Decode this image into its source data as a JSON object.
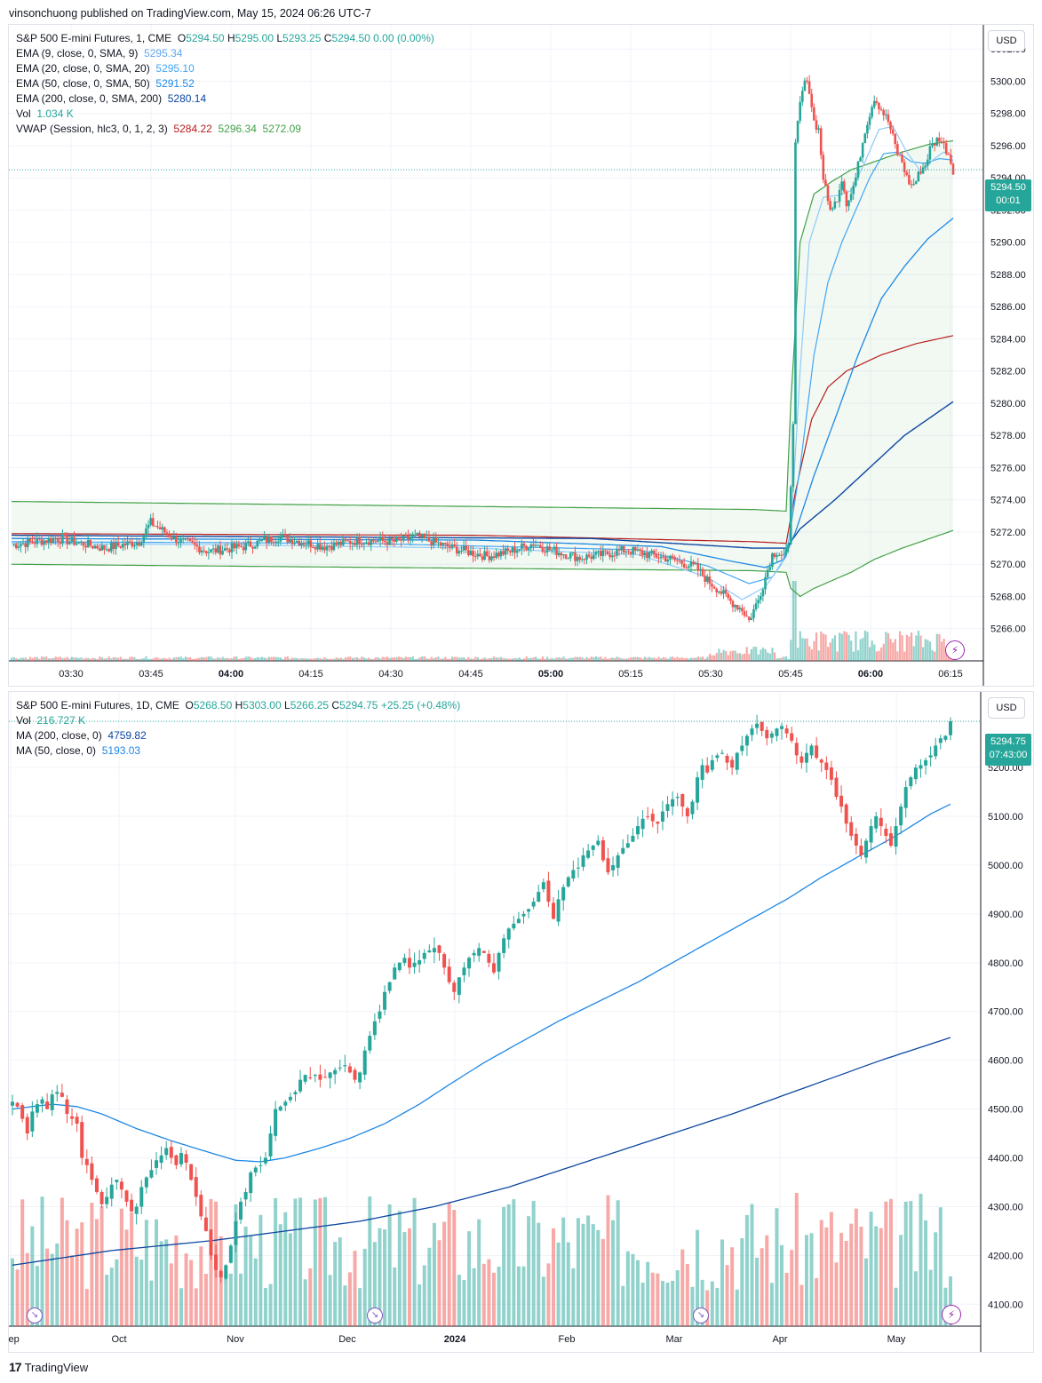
{
  "header": {
    "publisher": "vinsonchuong published on TradingView.com, May 15, 2024 06:26 UTC-7"
  },
  "top": {
    "title": "S&P 500 E-mini Futures, 1, CME",
    "ohlc": {
      "o_label": "O",
      "o": "5294.50",
      "h_label": "H",
      "h": "5295.00",
      "l_label": "L",
      "l": "5293.25",
      "c_label": "C",
      "c": "5294.50",
      "chg": "0.00 (0.00%)"
    },
    "indicators": [
      {
        "label": "EMA (9, close, 0, SMA, 9)",
        "value": "5295.34",
        "color": "#5fa8f0"
      },
      {
        "label": "EMA (20, close, 0, SMA, 20)",
        "value": "5295.10",
        "color": "#42a5f5"
      },
      {
        "label": "EMA (50, close, 0, SMA, 50)",
        "value": "5291.52",
        "color": "#1e88e5"
      },
      {
        "label": "EMA (200, close, 0, SMA, 200)",
        "value": "5280.14",
        "color": "#0d47a1"
      },
      {
        "label": "Vol",
        "value": "1.034 K",
        "color": "#26a69a"
      }
    ],
    "vwap": {
      "label": "VWAP (Session, hlc3, 0, 1, 2, 3)",
      "v1": "5284.22",
      "v2": "5296.34",
      "v3": "5272.09",
      "c1": "#b71c1c",
      "c2": "#43a047",
      "c3": "#43a047"
    },
    "currency": "USD",
    "last_price": "5294.50",
    "countdown": "00:01"
  },
  "bottom": {
    "title": "S&P 500 E-mini Futures, 1D, CME",
    "ohlc": {
      "o_label": "O",
      "o": "5268.50",
      "h_label": "H",
      "h": "5303.00",
      "l_label": "L",
      "l": "5266.25",
      "c_label": "C",
      "c": "5294.75",
      "chg": "+25.25 (+0.48%)"
    },
    "indicators": [
      {
        "label": "Vol",
        "value": "216.727 K",
        "color": "#26a69a"
      },
      {
        "label": "MA (200, close, 0)",
        "value": "4759.82",
        "color": "#0d47a1"
      },
      {
        "label": "MA (50, close, 0)",
        "value": "5193.03",
        "color": "#1e88e5"
      }
    ],
    "currency": "USD",
    "last_price": "5294.75",
    "countdown": "07:43:00"
  },
  "footer": {
    "brand": "TradingView",
    "logo_glyph": "17"
  },
  "chart_data": [
    {
      "type": "candlestick",
      "title": "S&P 500 E-mini Futures, 1, CME",
      "y_ticks": [
        5266,
        5268,
        5270,
        5272,
        5274,
        5276,
        5278,
        5280,
        5282,
        5284,
        5286,
        5288,
        5290,
        5292,
        5294,
        5296,
        5298,
        5300,
        5302
      ],
      "y_tick_labels": [
        "5266.00",
        "5268.00",
        "5270.00",
        "5272.00",
        "5274.00",
        "5276.00",
        "5278.00",
        "5280.00",
        "5282.00",
        "5284.00",
        "5286.00",
        "5288.00",
        "5290.00",
        "5292.00",
        "5294.00",
        "5296.00",
        "5298.00",
        "5300.00",
        "5302.00"
      ],
      "y_range": [
        5264.0,
        5303.5
      ],
      "x_ticks": [
        "03:30",
        "03:45",
        "04:00",
        "04:15",
        "04:30",
        "04:45",
        "05:00",
        "05:15",
        "05:30",
        "05:45",
        "06:00",
        "06:15"
      ],
      "x_bold": [
        "04:00",
        "05:00",
        "06:00"
      ],
      "price_path": [
        [
          0,
          5271.2
        ],
        [
          20,
          5271.6
        ],
        [
          40,
          5271.0
        ],
        [
          55,
          5271.4
        ],
        [
          60,
          5272.6
        ],
        [
          70,
          5271.6
        ],
        [
          85,
          5270.8
        ],
        [
          100,
          5271.1
        ],
        [
          115,
          5271.7
        ],
        [
          135,
          5271.1
        ],
        [
          150,
          5271.5
        ],
        [
          165,
          5271.4
        ],
        [
          175,
          5271.7
        ],
        [
          190,
          5271.0
        ],
        [
          205,
          5270.5
        ],
        [
          215,
          5270.8
        ],
        [
          225,
          5271.3
        ],
        [
          230,
          5271.0
        ],
        [
          245,
          5270.4
        ],
        [
          255,
          5270.6
        ],
        [
          265,
          5270.9
        ],
        [
          275,
          5270.6
        ],
        [
          285,
          5270.3
        ],
        [
          295,
          5269.8
        ],
        [
          300,
          5269.0
        ],
        [
          305,
          5268.4
        ],
        [
          310,
          5267.7
        ],
        [
          315,
          5267.2
        ],
        [
          318,
          5266.5
        ],
        [
          322,
          5267.8
        ],
        [
          325,
          5269.2
        ],
        [
          328,
          5270.6
        ],
        [
          330,
          5270.8
        ],
        [
          333,
          5270.5
        ],
        [
          335,
          5271.0
        ],
        [
          337,
          5279.0
        ],
        [
          338,
          5296.0
        ],
        [
          340,
          5298.5
        ],
        [
          342,
          5300.0
        ],
        [
          344,
          5299.5
        ],
        [
          346,
          5297.5
        ],
        [
          348,
          5297.0
        ],
        [
          350,
          5294.0
        ],
        [
          352,
          5292.5
        ],
        [
          354,
          5292.0
        ],
        [
          356,
          5292.8
        ],
        [
          358,
          5294.0
        ],
        [
          360,
          5292.5
        ],
        [
          362,
          5293.0
        ],
        [
          364,
          5294.0
        ],
        [
          366,
          5295.5
        ],
        [
          368,
          5297.0
        ],
        [
          370,
          5298.0
        ],
        [
          372,
          5299.0
        ],
        [
          374,
          5298.5
        ],
        [
          376,
          5298.0
        ],
        [
          378,
          5297.5
        ],
        [
          380,
          5296.5
        ],
        [
          382,
          5295.5
        ],
        [
          384,
          5295.0
        ],
        [
          386,
          5294.0
        ],
        [
          388,
          5293.5
        ],
        [
          390,
          5293.8
        ],
        [
          392,
          5294.5
        ],
        [
          394,
          5294.8
        ],
        [
          396,
          5295.8
        ],
        [
          398,
          5296.2
        ],
        [
          400,
          5296.5
        ],
        [
          402,
          5296.0
        ],
        [
          404,
          5295.5
        ],
        [
          406,
          5294.5
        ]
      ],
      "ema9": [
        [
          0,
          5271.3
        ],
        [
          100,
          5271.2
        ],
        [
          200,
          5271.0
        ],
        [
          270,
          5270.6
        ],
        [
          300,
          5269.2
        ],
        [
          315,
          5267.8
        ],
        [
          325,
          5268.6
        ],
        [
          332,
          5270.0
        ],
        [
          336,
          5272.0
        ],
        [
          340,
          5282.0
        ],
        [
          344,
          5290.0
        ],
        [
          350,
          5292.8
        ],
        [
          356,
          5292.9
        ],
        [
          362,
          5293.2
        ],
        [
          368,
          5295.0
        ],
        [
          374,
          5297.0
        ],
        [
          380,
          5297.2
        ],
        [
          386,
          5295.6
        ],
        [
          392,
          5294.4
        ],
        [
          398,
          5295.2
        ],
        [
          402,
          5295.6
        ],
        [
          406,
          5295.3
        ]
      ],
      "ema20": [
        [
          0,
          5271.4
        ],
        [
          150,
          5271.3
        ],
        [
          270,
          5270.9
        ],
        [
          300,
          5269.9
        ],
        [
          318,
          5268.8
        ],
        [
          328,
          5269.2
        ],
        [
          334,
          5270.5
        ],
        [
          340,
          5276.0
        ],
        [
          346,
          5283.0
        ],
        [
          352,
          5287.5
        ],
        [
          358,
          5290.0
        ],
        [
          364,
          5292.0
        ],
        [
          370,
          5294.0
        ],
        [
          376,
          5295.5
        ],
        [
          382,
          5295.6
        ],
        [
          388,
          5295.0
        ],
        [
          394,
          5294.9
        ],
        [
          400,
          5295.2
        ],
        [
          406,
          5295.1
        ]
      ],
      "ema50": [
        [
          0,
          5271.6
        ],
        [
          200,
          5271.5
        ],
        [
          280,
          5271.1
        ],
        [
          310,
          5270.2
        ],
        [
          325,
          5269.8
        ],
        [
          333,
          5270.3
        ],
        [
          338,
          5272.0
        ],
        [
          346,
          5275.5
        ],
        [
          355,
          5279.0
        ],
        [
          365,
          5283.0
        ],
        [
          375,
          5286.5
        ],
        [
          385,
          5288.5
        ],
        [
          395,
          5290.2
        ],
        [
          406,
          5291.5
        ]
      ],
      "ema200": [
        [
          0,
          5271.8
        ],
        [
          250,
          5271.6
        ],
        [
          320,
          5271.0
        ],
        [
          334,
          5271.0
        ],
        [
          340,
          5272.2
        ],
        [
          355,
          5274.0
        ],
        [
          370,
          5276.0
        ],
        [
          385,
          5278.0
        ],
        [
          406,
          5280.1
        ]
      ],
      "vwap": [
        [
          0,
          5271.9
        ],
        [
          200,
          5271.8
        ],
        [
          320,
          5271.4
        ],
        [
          334,
          5271.3
        ],
        [
          338,
          5274.5
        ],
        [
          345,
          5279.0
        ],
        [
          352,
          5281.0
        ],
        [
          360,
          5282.0
        ],
        [
          375,
          5283.0
        ],
        [
          390,
          5283.7
        ],
        [
          406,
          5284.2
        ]
      ],
      "vwap_upper": [
        [
          0,
          5273.9
        ],
        [
          320,
          5273.4
        ],
        [
          334,
          5273.3
        ],
        [
          336,
          5280.0
        ],
        [
          340,
          5290.0
        ],
        [
          346,
          5293.0
        ],
        [
          354,
          5293.8
        ],
        [
          362,
          5294.5
        ],
        [
          372,
          5295.0
        ],
        [
          384,
          5295.6
        ],
        [
          396,
          5296.1
        ],
        [
          406,
          5296.3
        ]
      ],
      "vwap_lower": [
        [
          0,
          5270.0
        ],
        [
          320,
          5269.6
        ],
        [
          334,
          5269.5
        ],
        [
          336,
          5268.5
        ],
        [
          340,
          5268.0
        ],
        [
          346,
          5268.5
        ],
        [
          354,
          5269.0
        ],
        [
          362,
          5269.5
        ],
        [
          372,
          5270.3
        ],
        [
          384,
          5271.0
        ],
        [
          396,
          5271.6
        ],
        [
          406,
          5272.1
        ]
      ]
    },
    {
      "type": "candlestick",
      "title": "S&P 500 E-mini Futures, 1D, CME",
      "y_ticks": [
        4100,
        4200,
        4300,
        4400,
        4500,
        4600,
        4700,
        4800,
        4900,
        5000,
        5100,
        5200
      ],
      "y_tick_labels": [
        "4100.00",
        "4200.00",
        "4300.00",
        "4400.00",
        "4500.00",
        "4600.00",
        "4700.00",
        "4800.00",
        "4900.00",
        "5000.00",
        "5100.00",
        "5200.00"
      ],
      "y_range": [
        4055,
        5355
      ],
      "x_ticks": [
        "Sep",
        "Oct",
        "Nov",
        "Dec",
        "2024",
        "Feb",
        "Mar",
        "Apr",
        "May"
      ],
      "x_bold": [
        "2024"
      ],
      "closes": [
        4515,
        4505,
        4480,
        4450,
        4495,
        4510,
        4520,
        4500,
        4530,
        4535,
        4525,
        4490,
        4480,
        4470,
        4400,
        4385,
        4355,
        4330,
        4305,
        4320,
        4345,
        4355,
        4335,
        4310,
        4290,
        4300,
        4340,
        4360,
        4375,
        4395,
        4405,
        4420,
        4400,
        4385,
        4410,
        4390,
        4355,
        4320,
        4280,
        4250,
        4200,
        4170,
        4155,
        4180,
        4220,
        4270,
        4310,
        4330,
        4370,
        4380,
        4385,
        4400,
        4450,
        4500,
        4505,
        4515,
        4525,
        4535,
        4560,
        4570,
        4565,
        4570,
        4560,
        4565,
        4575,
        4580,
        4585,
        4590,
        4575,
        4560,
        4575,
        4620,
        4650,
        4680,
        4700,
        4740,
        4760,
        4790,
        4800,
        4810,
        4790,
        4800,
        4805,
        4820,
        4825,
        4830,
        4820,
        4790,
        4760,
        4740,
        4770,
        4790,
        4810,
        4820,
        4830,
        4820,
        4800,
        4780,
        4820,
        4850,
        4870,
        4880,
        4890,
        4900,
        4910,
        4925,
        4945,
        4965,
        4925,
        4890,
        4930,
        4955,
        4975,
        4990,
        4995,
        5020,
        5030,
        5040,
        5050,
        5010,
        4985,
        5000,
        5020,
        5035,
        5045,
        5060,
        5080,
        5095,
        5100,
        5090,
        5085,
        5110,
        5125,
        5135,
        5140,
        5120,
        5100,
        5130,
        5180,
        5205,
        5190,
        5215,
        5225,
        5230,
        5210,
        5200,
        5230,
        5245,
        5265,
        5280,
        5290,
        5275,
        5260,
        5270,
        5280,
        5285,
        5270,
        5255,
        5225,
        5210,
        5230,
        5245,
        5220,
        5210,
        5195,
        5175,
        5140,
        5120,
        5085,
        5060,
        5040,
        5020,
        5050,
        5080,
        5100,
        5080,
        5060,
        5040,
        5080,
        5120,
        5160,
        5180,
        5200,
        5205,
        5215,
        5225,
        5245,
        5260,
        5265,
        5295
      ],
      "ma50": [
        [
          0,
          4500
        ],
        [
          8,
          4510
        ],
        [
          13,
          4505
        ],
        [
          18,
          4490
        ],
        [
          25,
          4460
        ],
        [
          32,
          4435
        ],
        [
          40,
          4410
        ],
        [
          45,
          4395
        ],
        [
          50,
          4392
        ],
        [
          55,
          4400
        ],
        [
          62,
          4420
        ],
        [
          68,
          4440
        ],
        [
          75,
          4470
        ],
        [
          82,
          4510
        ],
        [
          88,
          4550
        ],
        [
          95,
          4595
        ],
        [
          102,
          4635
        ],
        [
          110,
          4680
        ],
        [
          118,
          4720
        ],
        [
          126,
          4760
        ],
        [
          133,
          4800
        ],
        [
          140,
          4840
        ],
        [
          148,
          4885
        ],
        [
          156,
          4930
        ],
        [
          163,
          4975
        ],
        [
          170,
          5015
        ],
        [
          178,
          5060
        ],
        [
          185,
          5105
        ],
        [
          192,
          5140
        ],
        [
          196,
          5150
        ],
        [
          202,
          5165
        ],
        [
          208,
          5178
        ],
        [
          214,
          5193
        ]
      ],
      "ma200": [
        [
          0,
          4180
        ],
        [
          20,
          4210
        ],
        [
          40,
          4230
        ],
        [
          55,
          4250
        ],
        [
          70,
          4270
        ],
        [
          85,
          4300
        ],
        [
          100,
          4340
        ],
        [
          115,
          4390
        ],
        [
          130,
          4440
        ],
        [
          145,
          4490
        ],
        [
          160,
          4545
        ],
        [
          175,
          4600
        ],
        [
          190,
          4650
        ],
        [
          200,
          4690
        ],
        [
          207,
          4720
        ],
        [
          214,
          4760
        ]
      ]
    }
  ]
}
